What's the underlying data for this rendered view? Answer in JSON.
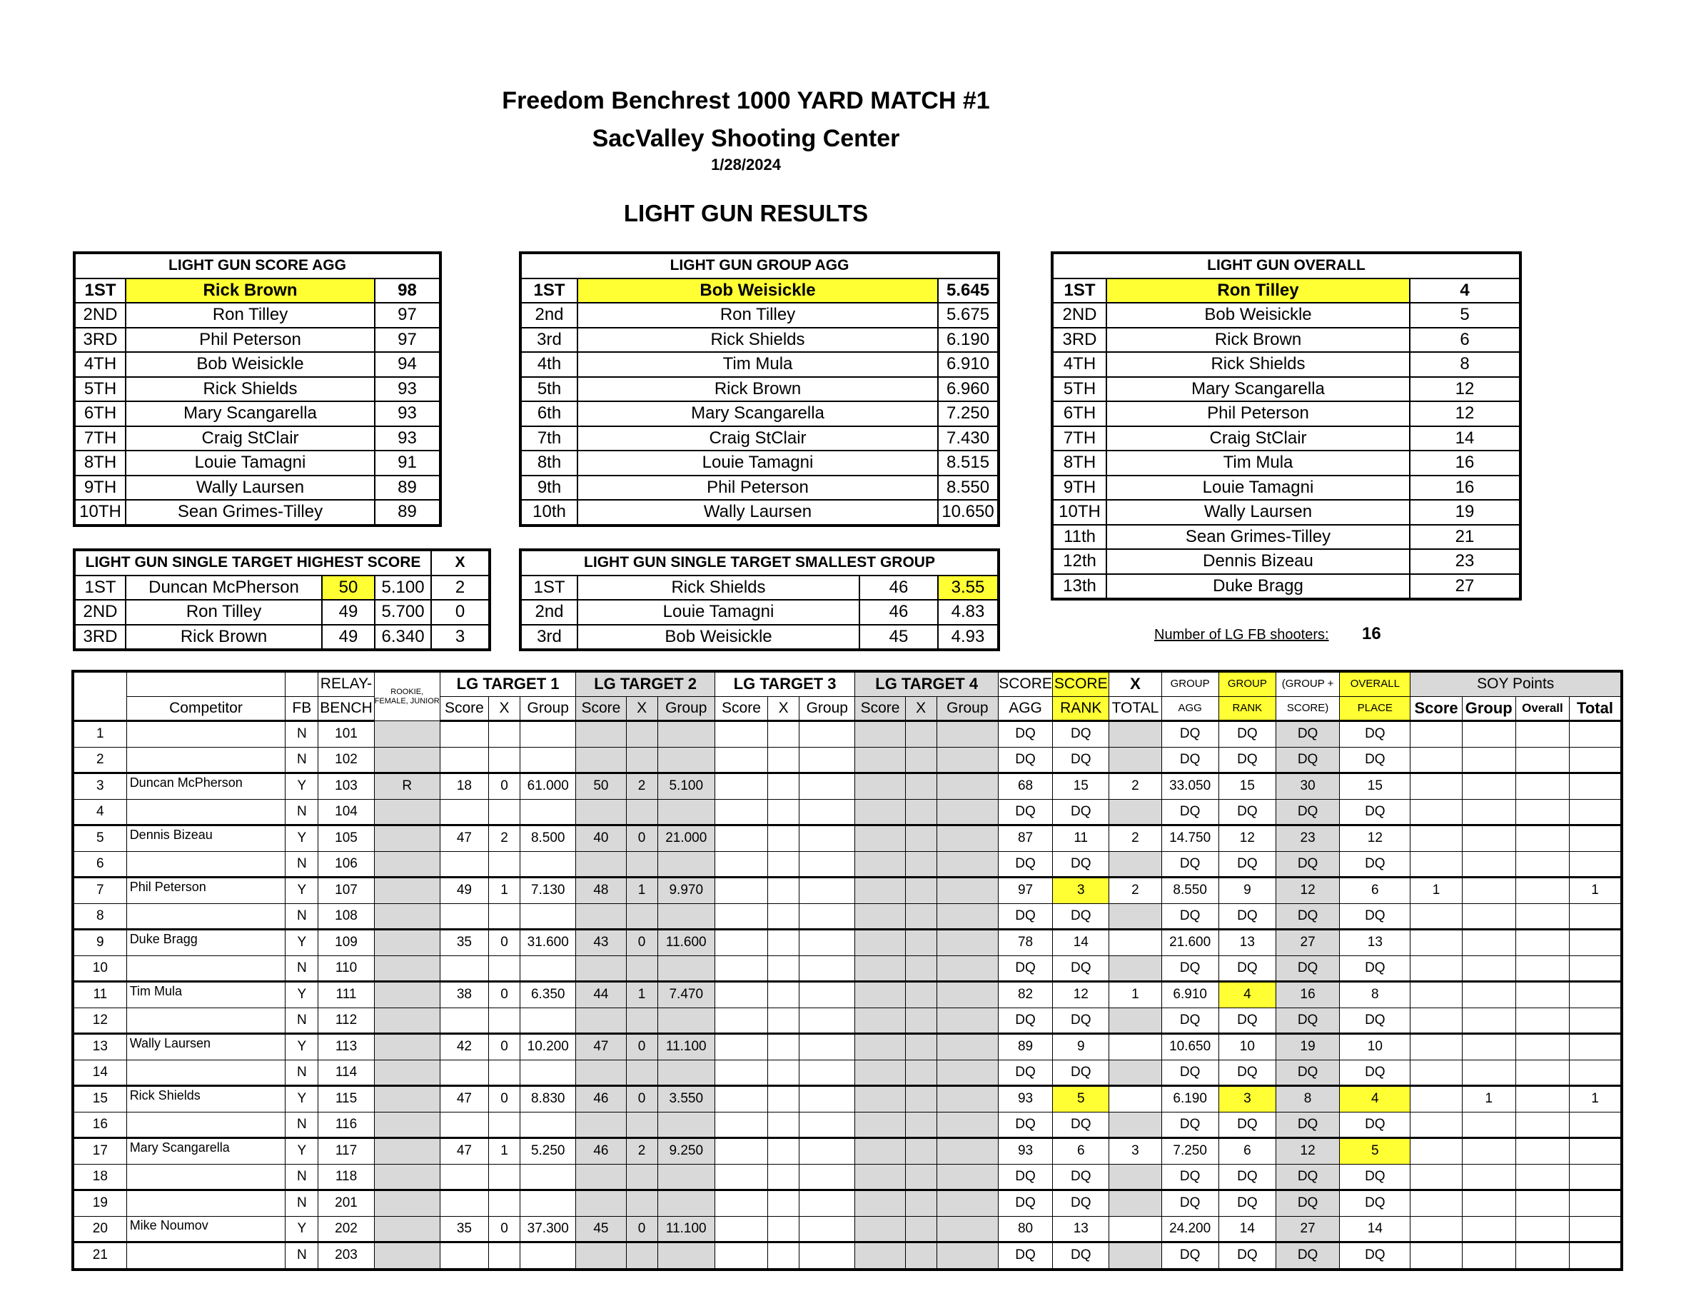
{
  "titles": {
    "line1": "Freedom Benchrest 1000 YARD MATCH #1",
    "line2": "SacValley Shooting Center",
    "date": "1/28/2024",
    "section": "LIGHT GUN RESULTS"
  },
  "score_agg": {
    "header": "LIGHT GUN SCORE AGG",
    "rows": [
      {
        "place": "1ST",
        "name": "Rick Brown",
        "value": "98"
      },
      {
        "place": "2ND",
        "name": "Ron Tilley",
        "value": "97"
      },
      {
        "place": "3RD",
        "name": "Phil Peterson",
        "value": "97"
      },
      {
        "place": "4TH",
        "name": "Bob Weisickle",
        "value": "94"
      },
      {
        "place": "5TH",
        "name": "Rick Shields",
        "value": "93"
      },
      {
        "place": "6TH",
        "name": "Mary Scangarella",
        "value": "93"
      },
      {
        "place": "7TH",
        "name": "Craig StClair",
        "value": "93"
      },
      {
        "place": "8TH",
        "name": "Louie Tamagni",
        "value": "91"
      },
      {
        "place": "9TH",
        "name": "Wally Laursen",
        "value": "89"
      },
      {
        "place": "10TH",
        "name": "Sean Grimes-Tilley",
        "value": "89"
      }
    ]
  },
  "group_agg": {
    "header": "LIGHT GUN GROUP AGG",
    "rows": [
      {
        "place": "1ST",
        "name": "Bob Weisickle",
        "value": "5.645"
      },
      {
        "place": "2nd",
        "name": "Ron Tilley",
        "value": "5.675"
      },
      {
        "place": "3rd",
        "name": "Rick Shields",
        "value": "6.190"
      },
      {
        "place": "4th",
        "name": "Tim Mula",
        "value": "6.910"
      },
      {
        "place": "5th",
        "name": "Rick Brown",
        "value": "6.960"
      },
      {
        "place": "6th",
        "name": "Mary Scangarella",
        "value": "7.250"
      },
      {
        "place": "7th",
        "name": "Craig StClair",
        "value": "7.430"
      },
      {
        "place": "8th",
        "name": "Louie Tamagni",
        "value": "8.515"
      },
      {
        "place": "9th",
        "name": "Phil Peterson",
        "value": "8.550"
      },
      {
        "place": "10th",
        "name": "Wally Laursen",
        "value": "10.650"
      }
    ]
  },
  "overall": {
    "header": "LIGHT GUN OVERALL",
    "rows": [
      {
        "place": "1ST",
        "name": "Ron Tilley",
        "value": "4"
      },
      {
        "place": "2ND",
        "name": "Bob Weisickle",
        "value": "5"
      },
      {
        "place": "3RD",
        "name": "Rick Brown",
        "value": "6"
      },
      {
        "place": "4TH",
        "name": "Rick Shields",
        "value": "8"
      },
      {
        "place": "5TH",
        "name": "Mary Scangarella",
        "value": "12"
      },
      {
        "place": "6TH",
        "name": "Phil Peterson",
        "value": "12"
      },
      {
        "place": "7TH",
        "name": "Craig StClair",
        "value": "14"
      },
      {
        "place": "8TH",
        "name": "Tim Mula",
        "value": "16"
      },
      {
        "place": "9TH",
        "name": "Louie Tamagni",
        "value": "16"
      },
      {
        "place": "10TH",
        "name": "Wally Laursen",
        "value": "19"
      },
      {
        "place": "11th",
        "name": "Sean Grimes-Tilley",
        "value": "21"
      },
      {
        "place": "12th",
        "name": "Dennis Bizeau",
        "value": "23"
      },
      {
        "place": "13th",
        "name": "Duke Bragg",
        "value": "27"
      }
    ]
  },
  "single_score": {
    "header": "LIGHT GUN SINGLE TARGET HIGHEST SCORE",
    "x_header": "X",
    "rows": [
      {
        "place": "1ST",
        "name": "Duncan McPherson",
        "score": "50",
        "group": "5.100",
        "x": "2"
      },
      {
        "place": "2ND",
        "name": "Ron Tilley",
        "score": "49",
        "group": "5.700",
        "x": "0"
      },
      {
        "place": "3RD",
        "name": "Rick Brown",
        "score": "49",
        "group": "6.340",
        "x": "3"
      }
    ]
  },
  "single_group": {
    "header": "LIGHT GUN SINGLE TARGET SMALLEST GROUP",
    "rows": [
      {
        "place": "1ST",
        "name": "Rick Shields",
        "score": "46",
        "group": "3.55"
      },
      {
        "place": "2nd",
        "name": "Louie Tamagni",
        "score": "46",
        "group": "4.83"
      },
      {
        "place": "3rd",
        "name": "Bob Weisickle",
        "score": "45",
        "group": "4.93"
      }
    ]
  },
  "shooters": {
    "label": "Number of LG FB shooters:",
    "value": "16"
  },
  "stats": {
    "headers": {
      "competitor": "Competitor",
      "fb": "FB",
      "relay1": "RELAY-",
      "relay2": "BENCH",
      "rookie": "ROOKIE, FEMALE, JUNIOR",
      "t1": "LG TARGET 1",
      "t2": "LG TARGET 2",
      "t3": "LG TARGET 3",
      "t4": "LG TARGET 4",
      "score": "Score",
      "x": "X",
      "group": "Group",
      "score_agg1": "SCORE",
      "score_agg2": "AGG",
      "score_rank1": "SCORE",
      "score_rank2": "RANK",
      "xt1": "X",
      "xt2": "TOTAL",
      "group_agg1": "GROUP",
      "group_agg2": "AGG",
      "group_rank1": "GROUP",
      "group_rank2": "RANK",
      "gps1": "(GROUP +",
      "gps2": "SCORE)",
      "op1": "OVERALL",
      "op2": "PLACE",
      "soy": "SOY Points",
      "soy_score": "Score",
      "soy_group": "Group",
      "soy_overall": "Overall",
      "soy_total": "Total"
    },
    "rows": [
      {
        "n": "1",
        "name": "",
        "fb": "N",
        "bench": "101",
        "r": "",
        "t1s": "",
        "t1x": "",
        "t1g": "",
        "t2s": "",
        "t2x": "",
        "t2g": "",
        "t3s": "",
        "t3x": "",
        "t3g": "",
        "t4s": "",
        "t4x": "",
        "t4g": "",
        "sagg": "DQ",
        "srank": "DQ",
        "xt": "",
        "gagg": "DQ",
        "grank": "DQ",
        "gps": "DQ",
        "op": "DQ",
        "soys": "",
        "soyg": "",
        "soyo": "",
        "soyt": ""
      },
      {
        "n": "2",
        "name": "",
        "fb": "N",
        "bench": "102",
        "r": "",
        "t1s": "",
        "t1x": "",
        "t1g": "",
        "t2s": "",
        "t2x": "",
        "t2g": "",
        "t3s": "",
        "t3x": "",
        "t3g": "",
        "t4s": "",
        "t4x": "",
        "t4g": "",
        "sagg": "DQ",
        "srank": "DQ",
        "xt": "",
        "gagg": "DQ",
        "grank": "DQ",
        "gps": "DQ",
        "op": "DQ",
        "soys": "",
        "soyg": "",
        "soyo": "",
        "soyt": ""
      },
      {
        "n": "3",
        "name": "Duncan McPherson",
        "fb": "Y",
        "bench": "103",
        "r": "R",
        "t1s": "18",
        "t1x": "0",
        "t1g": "61.000",
        "t2s": "50",
        "t2x": "2",
        "t2g": "5.100",
        "t3s": "",
        "t3x": "",
        "t3g": "",
        "t4s": "",
        "t4x": "",
        "t4g": "",
        "sagg": "68",
        "srank": "15",
        "xt": "2",
        "gagg": "33.050",
        "grank": "15",
        "gps": "30",
        "op": "15",
        "soys": "",
        "soyg": "",
        "soyo": "",
        "soyt": ""
      },
      {
        "n": "4",
        "name": "",
        "fb": "N",
        "bench": "104",
        "r": "",
        "t1s": "",
        "t1x": "",
        "t1g": "",
        "t2s": "",
        "t2x": "",
        "t2g": "",
        "t3s": "",
        "t3x": "",
        "t3g": "",
        "t4s": "",
        "t4x": "",
        "t4g": "",
        "sagg": "DQ",
        "srank": "DQ",
        "xt": "",
        "gagg": "DQ",
        "grank": "DQ",
        "gps": "DQ",
        "op": "DQ",
        "soys": "",
        "soyg": "",
        "soyo": "",
        "soyt": ""
      },
      {
        "n": "5",
        "name": "Dennis Bizeau",
        "fb": "Y",
        "bench": "105",
        "r": "",
        "t1s": "47",
        "t1x": "2",
        "t1g": "8.500",
        "t2s": "40",
        "t2x": "0",
        "t2g": "21.000",
        "t3s": "",
        "t3x": "",
        "t3g": "",
        "t4s": "",
        "t4x": "",
        "t4g": "",
        "sagg": "87",
        "srank": "11",
        "xt": "2",
        "gagg": "14.750",
        "grank": "12",
        "gps": "23",
        "op": "12",
        "soys": "",
        "soyg": "",
        "soyo": "",
        "soyt": ""
      },
      {
        "n": "6",
        "name": "",
        "fb": "N",
        "bench": "106",
        "r": "",
        "t1s": "",
        "t1x": "",
        "t1g": "",
        "t2s": "",
        "t2x": "",
        "t2g": "",
        "t3s": "",
        "t3x": "",
        "t3g": "",
        "t4s": "",
        "t4x": "",
        "t4g": "",
        "sagg": "DQ",
        "srank": "DQ",
        "xt": "",
        "gagg": "DQ",
        "grank": "DQ",
        "gps": "DQ",
        "op": "DQ",
        "soys": "",
        "soyg": "",
        "soyo": "",
        "soyt": ""
      },
      {
        "n": "7",
        "name": "Phil Peterson",
        "fb": "Y",
        "bench": "107",
        "r": "",
        "t1s": "49",
        "t1x": "1",
        "t1g": "7.130",
        "t2s": "48",
        "t2x": "1",
        "t2g": "9.970",
        "t3s": "",
        "t3x": "",
        "t3g": "",
        "t4s": "",
        "t4x": "",
        "t4g": "",
        "sagg": "97",
        "srank": "3",
        "xt": "2",
        "gagg": "8.550",
        "grank": "9",
        "gps": "12",
        "op": "6",
        "soys": "1",
        "soyg": "",
        "soyo": "",
        "soyt": "1"
      },
      {
        "n": "8",
        "name": "",
        "fb": "N",
        "bench": "108",
        "r": "",
        "t1s": "",
        "t1x": "",
        "t1g": "",
        "t2s": "",
        "t2x": "",
        "t2g": "",
        "t3s": "",
        "t3x": "",
        "t3g": "",
        "t4s": "",
        "t4x": "",
        "t4g": "",
        "sagg": "DQ",
        "srank": "DQ",
        "xt": "",
        "gagg": "DQ",
        "grank": "DQ",
        "gps": "DQ",
        "op": "DQ",
        "soys": "",
        "soyg": "",
        "soyo": "",
        "soyt": ""
      },
      {
        "n": "9",
        "name": "Duke Bragg",
        "fb": "Y",
        "bench": "109",
        "r": "",
        "t1s": "35",
        "t1x": "0",
        "t1g": "31.600",
        "t2s": "43",
        "t2x": "0",
        "t2g": "11.600",
        "t3s": "",
        "t3x": "",
        "t3g": "",
        "t4s": "",
        "t4x": "",
        "t4g": "",
        "sagg": "78",
        "srank": "14",
        "xt": "",
        "gagg": "21.600",
        "grank": "13",
        "gps": "27",
        "op": "13",
        "soys": "",
        "soyg": "",
        "soyo": "",
        "soyt": ""
      },
      {
        "n": "10",
        "name": "",
        "fb": "N",
        "bench": "110",
        "r": "",
        "t1s": "",
        "t1x": "",
        "t1g": "",
        "t2s": "",
        "t2x": "",
        "t2g": "",
        "t3s": "",
        "t3x": "",
        "t3g": "",
        "t4s": "",
        "t4x": "",
        "t4g": "",
        "sagg": "DQ",
        "srank": "DQ",
        "xt": "",
        "gagg": "DQ",
        "grank": "DQ",
        "gps": "DQ",
        "op": "DQ",
        "soys": "",
        "soyg": "",
        "soyo": "",
        "soyt": ""
      },
      {
        "n": "11",
        "name": "Tim Mula",
        "fb": "Y",
        "bench": "111",
        "r": "",
        "t1s": "38",
        "t1x": "0",
        "t1g": "6.350",
        "t2s": "44",
        "t2x": "1",
        "t2g": "7.470",
        "t3s": "",
        "t3x": "",
        "t3g": "",
        "t4s": "",
        "t4x": "",
        "t4g": "",
        "sagg": "82",
        "srank": "12",
        "xt": "1",
        "gagg": "6.910",
        "grank": "4",
        "gps": "16",
        "op": "8",
        "soys": "",
        "soyg": "",
        "soyo": "",
        "soyt": ""
      },
      {
        "n": "12",
        "name": "",
        "fb": "N",
        "bench": "112",
        "r": "",
        "t1s": "",
        "t1x": "",
        "t1g": "",
        "t2s": "",
        "t2x": "",
        "t2g": "",
        "t3s": "",
        "t3x": "",
        "t3g": "",
        "t4s": "",
        "t4x": "",
        "t4g": "",
        "sagg": "DQ",
        "srank": "DQ",
        "xt": "",
        "gagg": "DQ",
        "grank": "DQ",
        "gps": "DQ",
        "op": "DQ",
        "soys": "",
        "soyg": "",
        "soyo": "",
        "soyt": ""
      },
      {
        "n": "13",
        "name": "Wally Laursen",
        "fb": "Y",
        "bench": "113",
        "r": "",
        "t1s": "42",
        "t1x": "0",
        "t1g": "10.200",
        "t2s": "47",
        "t2x": "0",
        "t2g": "11.100",
        "t3s": "",
        "t3x": "",
        "t3g": "",
        "t4s": "",
        "t4x": "",
        "t4g": "",
        "sagg": "89",
        "srank": "9",
        "xt": "",
        "gagg": "10.650",
        "grank": "10",
        "gps": "19",
        "op": "10",
        "soys": "",
        "soyg": "",
        "soyo": "",
        "soyt": ""
      },
      {
        "n": "14",
        "name": "",
        "fb": "N",
        "bench": "114",
        "r": "",
        "t1s": "",
        "t1x": "",
        "t1g": "",
        "t2s": "",
        "t2x": "",
        "t2g": "",
        "t3s": "",
        "t3x": "",
        "t3g": "",
        "t4s": "",
        "t4x": "",
        "t4g": "",
        "sagg": "DQ",
        "srank": "DQ",
        "xt": "",
        "gagg": "DQ",
        "grank": "DQ",
        "gps": "DQ",
        "op": "DQ",
        "soys": "",
        "soyg": "",
        "soyo": "",
        "soyt": ""
      },
      {
        "n": "15",
        "name": "Rick Shields",
        "fb": "Y",
        "bench": "115",
        "r": "",
        "t1s": "47",
        "t1x": "0",
        "t1g": "8.830",
        "t2s": "46",
        "t2x": "0",
        "t2g": "3.550",
        "t3s": "",
        "t3x": "",
        "t3g": "",
        "t4s": "",
        "t4x": "",
        "t4g": "",
        "sagg": "93",
        "srank": "5",
        "xt": "",
        "gagg": "6.190",
        "grank": "3",
        "gps": "8",
        "op": "4",
        "soys": "",
        "soyg": "1",
        "soyo": "",
        "soyt": "1"
      },
      {
        "n": "16",
        "name": "",
        "fb": "N",
        "bench": "116",
        "r": "",
        "t1s": "",
        "t1x": "",
        "t1g": "",
        "t2s": "",
        "t2x": "",
        "t2g": "",
        "t3s": "",
        "t3x": "",
        "t3g": "",
        "t4s": "",
        "t4x": "",
        "t4g": "",
        "sagg": "DQ",
        "srank": "DQ",
        "xt": "",
        "gagg": "DQ",
        "grank": "DQ",
        "gps": "DQ",
        "op": "DQ",
        "soys": "",
        "soyg": "",
        "soyo": "",
        "soyt": ""
      },
      {
        "n": "17",
        "name": "Mary Scangarella",
        "fb": "Y",
        "bench": "117",
        "r": "",
        "t1s": "47",
        "t1x": "1",
        "t1g": "5.250",
        "t2s": "46",
        "t2x": "2",
        "t2g": "9.250",
        "t3s": "",
        "t3x": "",
        "t3g": "",
        "t4s": "",
        "t4x": "",
        "t4g": "",
        "sagg": "93",
        "srank": "6",
        "xt": "3",
        "gagg": "7.250",
        "grank": "6",
        "gps": "12",
        "op": "5",
        "soys": "",
        "soyg": "",
        "soyo": "",
        "soyt": ""
      },
      {
        "n": "18",
        "name": "",
        "fb": "N",
        "bench": "118",
        "r": "",
        "t1s": "",
        "t1x": "",
        "t1g": "",
        "t2s": "",
        "t2x": "",
        "t2g": "",
        "t3s": "",
        "t3x": "",
        "t3g": "",
        "t4s": "",
        "t4x": "",
        "t4g": "",
        "sagg": "DQ",
        "srank": "DQ",
        "xt": "",
        "gagg": "DQ",
        "grank": "DQ",
        "gps": "DQ",
        "op": "DQ",
        "soys": "",
        "soyg": "",
        "soyo": "",
        "soyt": ""
      },
      {
        "n": "19",
        "name": "",
        "fb": "N",
        "bench": "201",
        "r": "",
        "t1s": "",
        "t1x": "",
        "t1g": "",
        "t2s": "",
        "t2x": "",
        "t2g": "",
        "t3s": "",
        "t3x": "",
        "t3g": "",
        "t4s": "",
        "t4x": "",
        "t4g": "",
        "sagg": "DQ",
        "srank": "DQ",
        "xt": "",
        "gagg": "DQ",
        "grank": "DQ",
        "gps": "DQ",
        "op": "DQ",
        "soys": "",
        "soyg": "",
        "soyo": "",
        "soyt": ""
      },
      {
        "n": "20",
        "name": "Mike Noumov",
        "fb": "Y",
        "bench": "202",
        "r": "",
        "t1s": "35",
        "t1x": "0",
        "t1g": "37.300",
        "t2s": "45",
        "t2x": "0",
        "t2g": "11.100",
        "t3s": "",
        "t3x": "",
        "t3g": "",
        "t4s": "",
        "t4x": "",
        "t4g": "",
        "sagg": "80",
        "srank": "13",
        "xt": "",
        "gagg": "24.200",
        "grank": "14",
        "gps": "27",
        "op": "14",
        "soys": "",
        "soyg": "",
        "soyo": "",
        "soyt": ""
      },
      {
        "n": "21",
        "name": "",
        "fb": "N",
        "bench": "203",
        "r": "",
        "t1s": "",
        "t1x": "",
        "t1g": "",
        "t2s": "",
        "t2x": "",
        "t2g": "",
        "t3s": "",
        "t3x": "",
        "t3g": "",
        "t4s": "",
        "t4x": "",
        "t4g": "",
        "sagg": "DQ",
        "srank": "DQ",
        "xt": "",
        "gagg": "DQ",
        "grank": "DQ",
        "gps": "DQ",
        "op": "DQ",
        "soys": "",
        "soyg": "",
        "soyo": "",
        "soyt": ""
      }
    ]
  },
  "colors": {
    "highlight": "#ffff33",
    "shade": "#d9d9d9"
  }
}
